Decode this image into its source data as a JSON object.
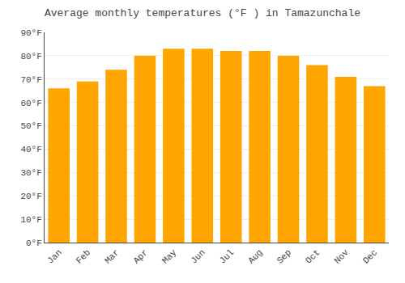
{
  "chart_data": {
    "type": "bar",
    "title": "Average monthly temperatures (°F ) in Tamazunchale",
    "categories": [
      "Jan",
      "Feb",
      "Mar",
      "Apr",
      "May",
      "Jun",
      "Jul",
      "Aug",
      "Sep",
      "Oct",
      "Nov",
      "Dec"
    ],
    "values": [
      66,
      69,
      74,
      80,
      83,
      83,
      82,
      82,
      80,
      76,
      71,
      67
    ],
    "color": "#FFA500",
    "ylim": [
      0,
      90
    ],
    "yticks": [
      {
        "value": 0,
        "label": "0°F"
      },
      {
        "value": 10,
        "label": "10°F"
      },
      {
        "value": 20,
        "label": "20°F"
      },
      {
        "value": 30,
        "label": "30°F"
      },
      {
        "value": 40,
        "label": "40°F"
      },
      {
        "value": 50,
        "label": "50°F"
      },
      {
        "value": 60,
        "label": "60°F"
      },
      {
        "value": 70,
        "label": "70°F"
      },
      {
        "value": 80,
        "label": "80°F"
      },
      {
        "value": 90,
        "label": "90°F"
      }
    ],
    "grid": true
  }
}
